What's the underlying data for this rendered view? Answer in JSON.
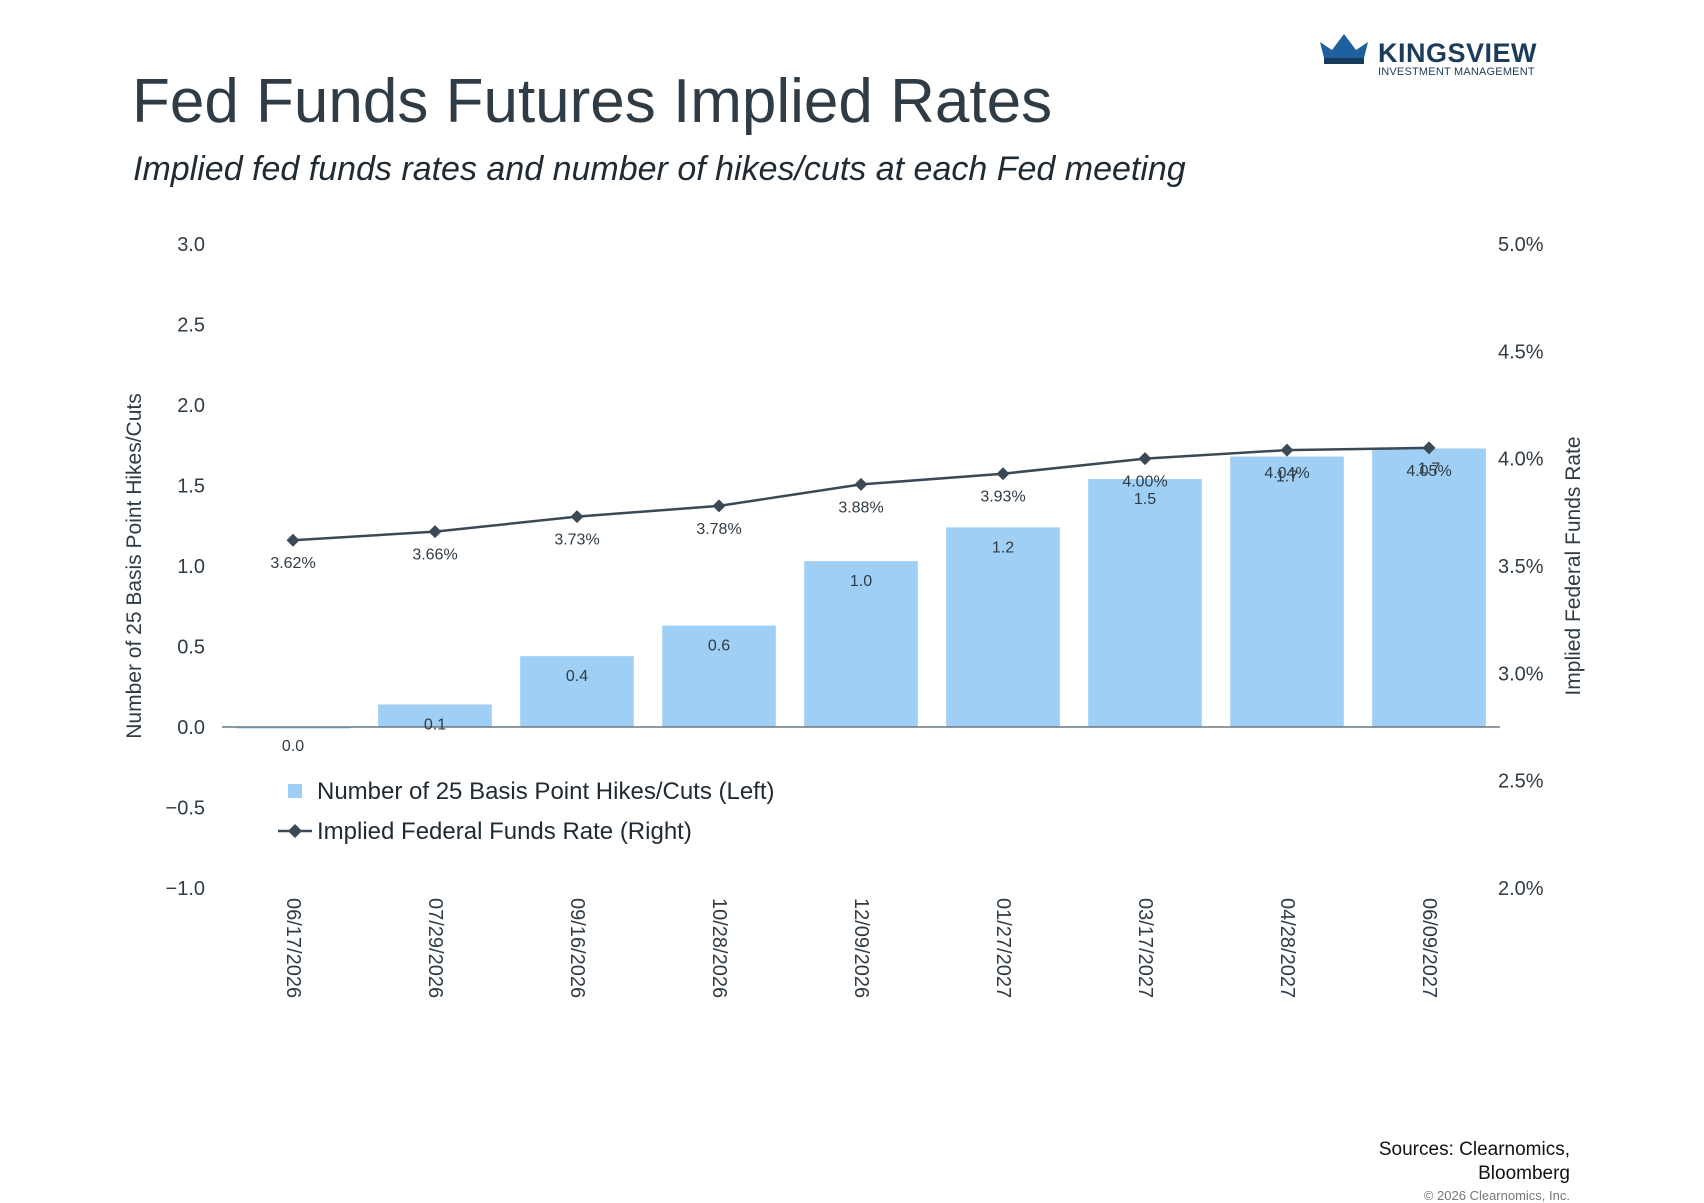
{
  "title": "Fed Funds Futures Implied Rates",
  "subtitle": "Implied fed funds rates and number of hikes/cuts at each Fed meeting",
  "logo": {
    "name": "KINGSVIEW",
    "tagline": "INVESTMENT MANAGEMENT"
  },
  "sources": {
    "line1": "Sources: Clearnomics,",
    "line2": "Bloomberg"
  },
  "copyright": "© 2026 Clearnomics, Inc.",
  "colors": {
    "bar": "#9fcff4",
    "line": "#3b4957",
    "text": "#2f3b45"
  },
  "chart_data": {
    "type": "bar",
    "categories": [
      "06/17/2026",
      "07/29/2026",
      "09/16/2026",
      "10/28/2026",
      "12/09/2026",
      "01/27/2027",
      "03/17/2027",
      "04/28/2027",
      "06/09/2027"
    ],
    "series": [
      {
        "name": "Number of 25 Basis Point Hikes/Cuts (Left)",
        "type": "bar",
        "axis": "left",
        "values": [
          0.0,
          0.14,
          0.44,
          0.63,
          1.03,
          1.24,
          1.54,
          1.68,
          1.73
        ],
        "labels": [
          "0.0",
          "0.1",
          "0.4",
          "0.6",
          "1.0",
          "1.2",
          "1.5",
          "1.7",
          "1.7"
        ]
      },
      {
        "name": "Implied Federal Funds Rate (Right)",
        "type": "line",
        "axis": "right",
        "values": [
          3.62,
          3.66,
          3.73,
          3.78,
          3.88,
          3.93,
          4.0,
          4.04,
          4.05
        ],
        "labels": [
          "3.62%",
          "3.66%",
          "3.73%",
          "3.78%",
          "3.88%",
          "3.93%",
          "4.00%",
          "4.04%",
          "4.05%"
        ]
      }
    ],
    "ylabel": "Number of 25 Basis Point Hikes/Cuts",
    "y2label": "Implied Federal Funds Rate",
    "ylim": [
      -1.0,
      3.0
    ],
    "y2lim": [
      2.0,
      5.0
    ],
    "yticks": [
      "3.0",
      "2.5",
      "2.0",
      "1.5",
      "1.0",
      "0.5",
      "0.0",
      "−0.5",
      "−1.0"
    ],
    "yticks_values": [
      3.0,
      2.5,
      2.0,
      1.5,
      1.0,
      0.5,
      0.0,
      -0.5,
      -1.0
    ],
    "y2ticks": [
      "5.0%",
      "4.5%",
      "4.0%",
      "3.5%",
      "3.0%",
      "2.5%",
      "2.0%"
    ],
    "y2ticks_values": [
      5.0,
      4.5,
      4.0,
      3.5,
      3.0,
      2.5,
      2.0
    ],
    "grid": false,
    "legend": "inside-lower-left"
  }
}
